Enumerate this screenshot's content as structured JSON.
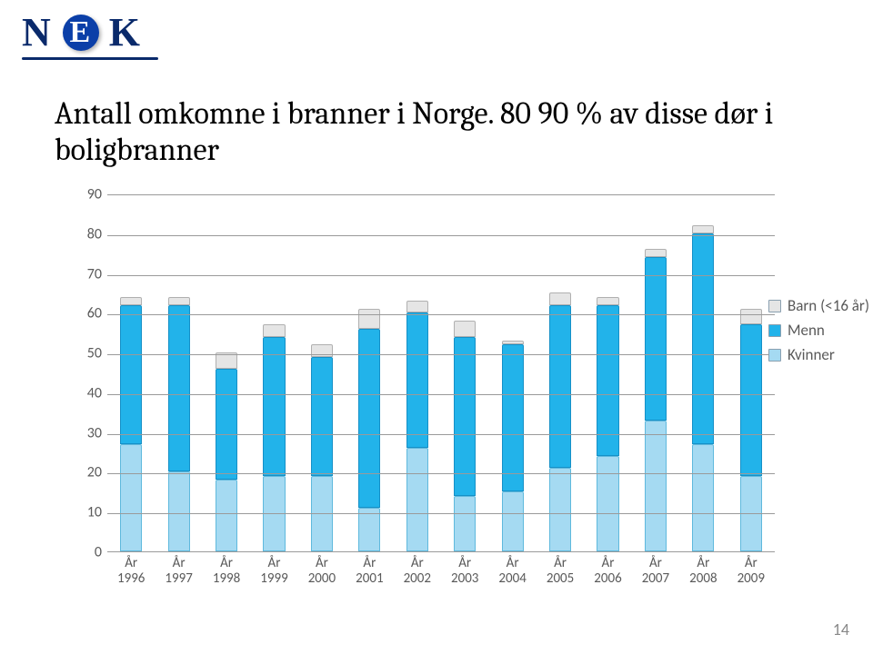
{
  "logo": {
    "n": "N",
    "e": "E",
    "k": "K"
  },
  "title_line1": "Antall omkomne i branner i Norge. 80 90 % av disse dør i",
  "title_line2": "boligbranner",
  "page_number": "14",
  "chart": {
    "type": "stacked-bar",
    "ymax": 90,
    "ymin": 0,
    "ytick_step": 10,
    "bar_width_ratio": 0.46,
    "background_color": "#ffffff",
    "grid_color": "#9a9a9a",
    "axis_label_color": "#5a5a5a",
    "axis_label_fontsize": 16,
    "categories": [
      "År\n1996",
      "År\n1997",
      "År\n1998",
      "År\n1999",
      "År\n2000",
      "År\n2001",
      "År\n2002",
      "År\n2003",
      "År\n2004",
      "År\n2005",
      "År\n2006",
      "År\n2007",
      "År\n2008",
      "År\n2009"
    ],
    "series": [
      {
        "name": "Kvinner",
        "color": "#a5daf2"
      },
      {
        "name": "Menn",
        "color": "#22b3ea"
      },
      {
        "name": "Barn (<16 år)",
        "color": "#e5e5e5"
      }
    ],
    "data": [
      {
        "kvinner": 27,
        "menn": 35,
        "barn": 2
      },
      {
        "kvinner": 20,
        "menn": 42,
        "barn": 2
      },
      {
        "kvinner": 18,
        "menn": 28,
        "barn": 4
      },
      {
        "kvinner": 19,
        "menn": 35,
        "barn": 3
      },
      {
        "kvinner": 19,
        "menn": 30,
        "barn": 3
      },
      {
        "kvinner": 11,
        "menn": 45,
        "barn": 5
      },
      {
        "kvinner": 26,
        "menn": 34,
        "barn": 3
      },
      {
        "kvinner": 14,
        "menn": 40,
        "barn": 4
      },
      {
        "kvinner": 15,
        "menn": 37,
        "barn": 1
      },
      {
        "kvinner": 21,
        "menn": 41,
        "barn": 3
      },
      {
        "kvinner": 24,
        "menn": 38,
        "barn": 2
      },
      {
        "kvinner": 33,
        "menn": 41,
        "barn": 2
      },
      {
        "kvinner": 27,
        "menn": 53,
        "barn": 2
      },
      {
        "kvinner": 19,
        "menn": 38,
        "barn": 4
      }
    ],
    "series_colors": {
      "kvinner": {
        "fill": "#a5daf2",
        "border": "#5fb9dd"
      },
      "menn": {
        "fill": "#22b3ea",
        "border": "#1590c7"
      },
      "barn": {
        "fill": "#e5e5e5",
        "border": "#b0b0b0"
      }
    },
    "legend_order": [
      "Barn (<16 år)",
      "Menn",
      "Kvinner"
    ],
    "legend_colors": [
      "#e5e5e5",
      "#22b3ea",
      "#a5daf2"
    ]
  }
}
